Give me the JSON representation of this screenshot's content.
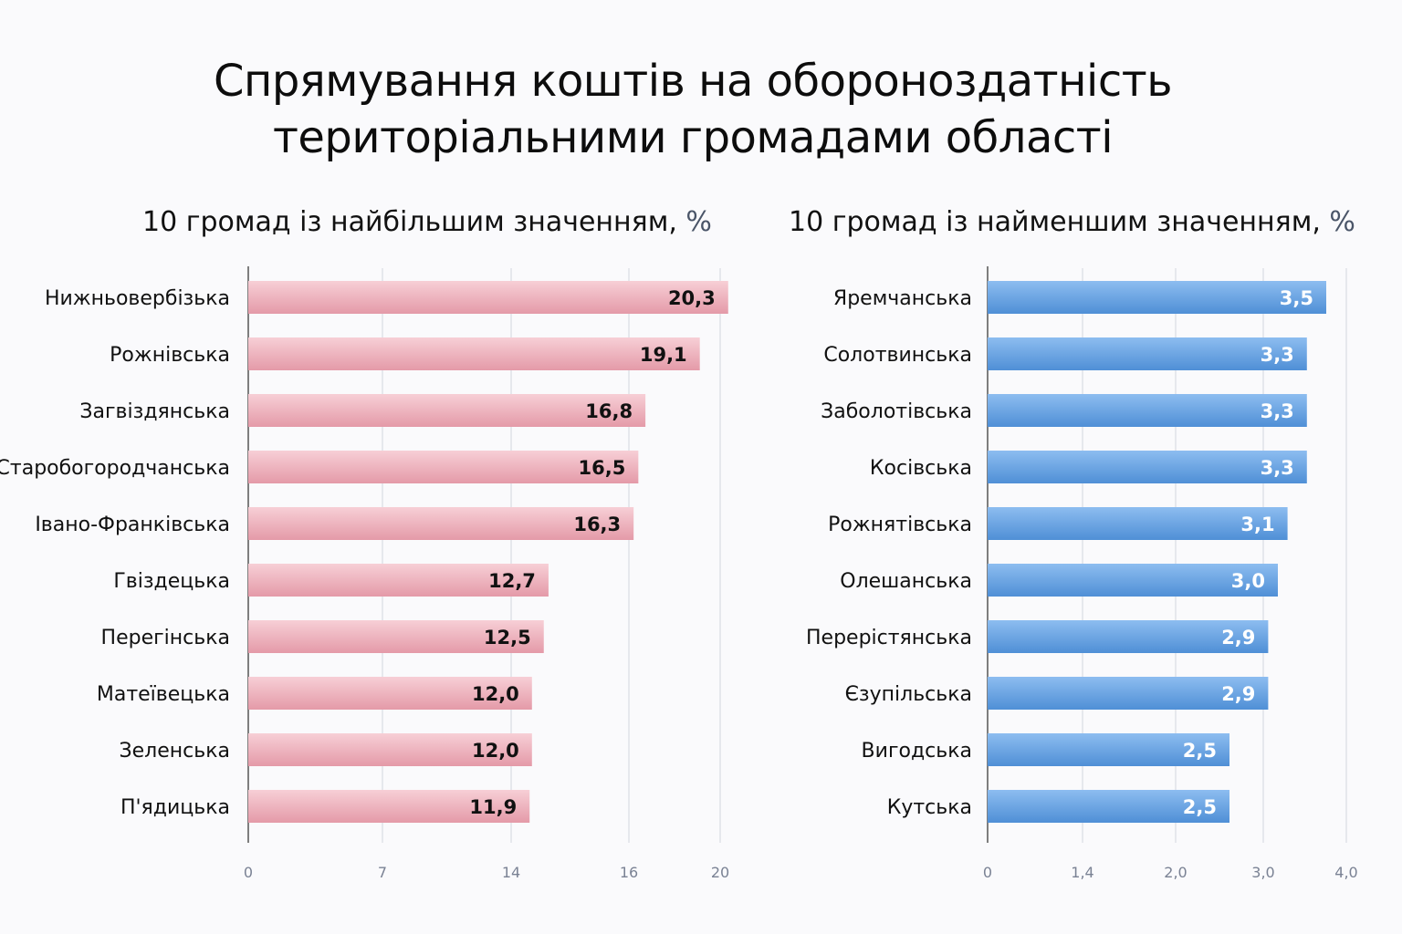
{
  "title_lines": [
    "Спрямування коштів на обороноздатність",
    "територіальними громадами області"
  ],
  "colors": {
    "left_bar_top": "#f7cfd6",
    "left_bar_bottom": "#e49aa8",
    "right_bar_top": "#8dbdf0",
    "right_bar_bottom": "#4f8fd6",
    "grid": "#dfe1e8",
    "axis": "#555555"
  },
  "chart_data": [
    {
      "type": "bar",
      "orientation": "horizontal",
      "title": "10 громад із найбільшим значенням, ",
      "unit": "%",
      "categories": [
        "Нижньовербізька",
        "Рожнівська",
        "Загвіздянська",
        "Старобогородчанська",
        "Івано-Франківська",
        "Гвіздецька",
        "Перегінська",
        "Матеївецька",
        "Зеленська",
        "П'ядицька"
      ],
      "values": [
        20.3,
        19.1,
        16.8,
        16.5,
        16.3,
        12.7,
        12.5,
        12.0,
        12.0,
        11.9
      ],
      "value_labels": [
        "20,3",
        "19,1",
        "16,8",
        "16,5",
        "16,3",
        "12,7",
        "12,5",
        "12,0",
        "12,0",
        "11,9"
      ],
      "ticks": [
        "0",
        "7",
        "14",
        "16",
        "20"
      ],
      "grid": true
    },
    {
      "type": "bar",
      "orientation": "horizontal",
      "title": "10 громад із найменшим значенням, ",
      "unit": "%",
      "categories": [
        "Яремчанська",
        "Солотвинська",
        "Заболотівська",
        "Косівська",
        "Рожнятівська",
        "Олешанська",
        "Перерістянська",
        "Єзупільська",
        "Вигодська",
        "Кутська"
      ],
      "values": [
        3.5,
        3.3,
        3.3,
        3.3,
        3.1,
        3.0,
        2.9,
        2.9,
        2.5,
        2.5
      ],
      "value_labels": [
        "3,5",
        "3,3",
        "3,3",
        "3,3",
        "3,1",
        "3,0",
        "2,9",
        "2,9",
        "2,5",
        "2,5"
      ],
      "ticks": [
        "0",
        "1,4",
        "2,0",
        "3,0",
        "4,0"
      ],
      "grid": true
    }
  ]
}
